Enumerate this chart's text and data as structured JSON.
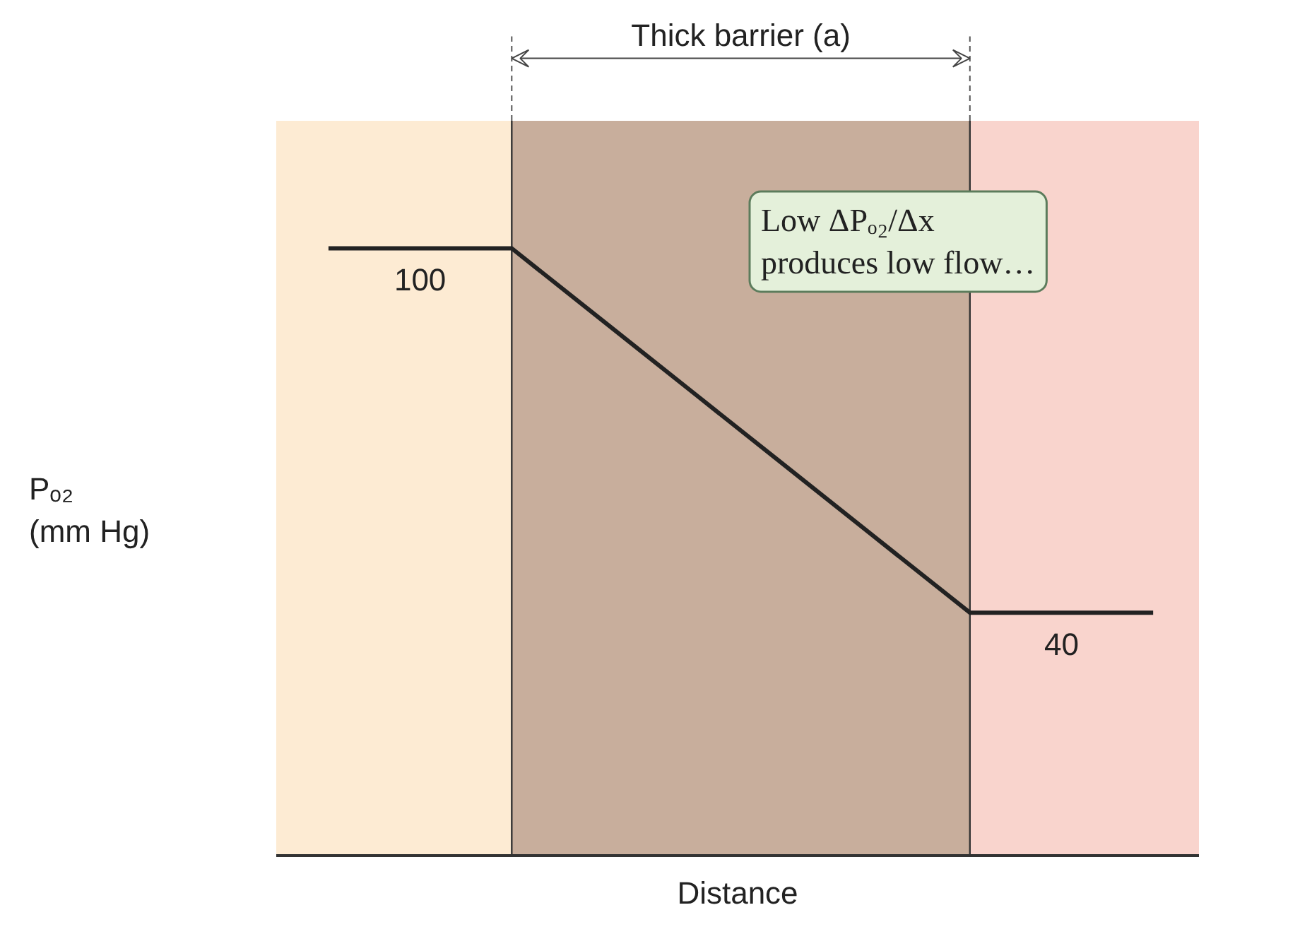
{
  "chart_data": {
    "type": "line",
    "xlabel": "Distance",
    "ylabel": "Pₒ₂\n(mm Hg)",
    "categories": [
      null,
      null,
      null,
      null,
      null,
      null,
      null,
      null,
      null,
      null
    ],
    "series": [
      {
        "color": "#222222",
        "values": [
          100,
          100,
          100,
          88,
          76,
          64,
          52,
          40,
          40,
          40
        ],
        "value_labels": [
          null,
          "100",
          null,
          null,
          null,
          null,
          null,
          null,
          "40",
          null
        ]
      }
    ],
    "ylim": [
      0,
      121
    ],
    "annotations": [
      "Thick barrier (a)",
      "Low ΔPₒ₂/Δx\nproduces low flow…"
    ],
    "marker": "none",
    "line_style": "solid"
  }
}
